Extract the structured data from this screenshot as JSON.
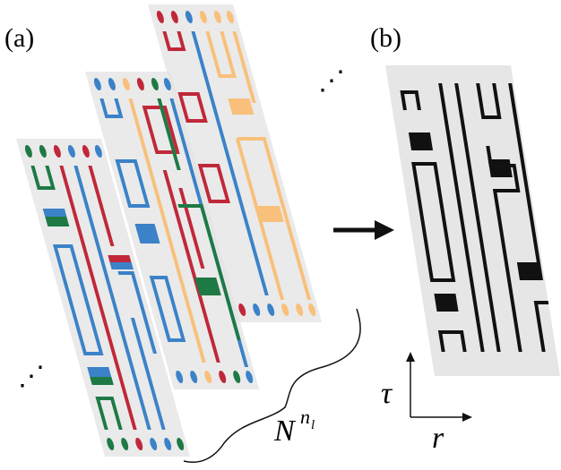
{
  "panel_a": {
    "label": "(a)",
    "ellipsis_front": "⋰",
    "ellipsis_back": "⋰"
  },
  "panel_b": {
    "label": "(b)",
    "axis_vertical": "τ",
    "axis_horizontal": "r"
  },
  "brace_label": {
    "base": "N",
    "sup": "n",
    "sub": "l"
  }
}
